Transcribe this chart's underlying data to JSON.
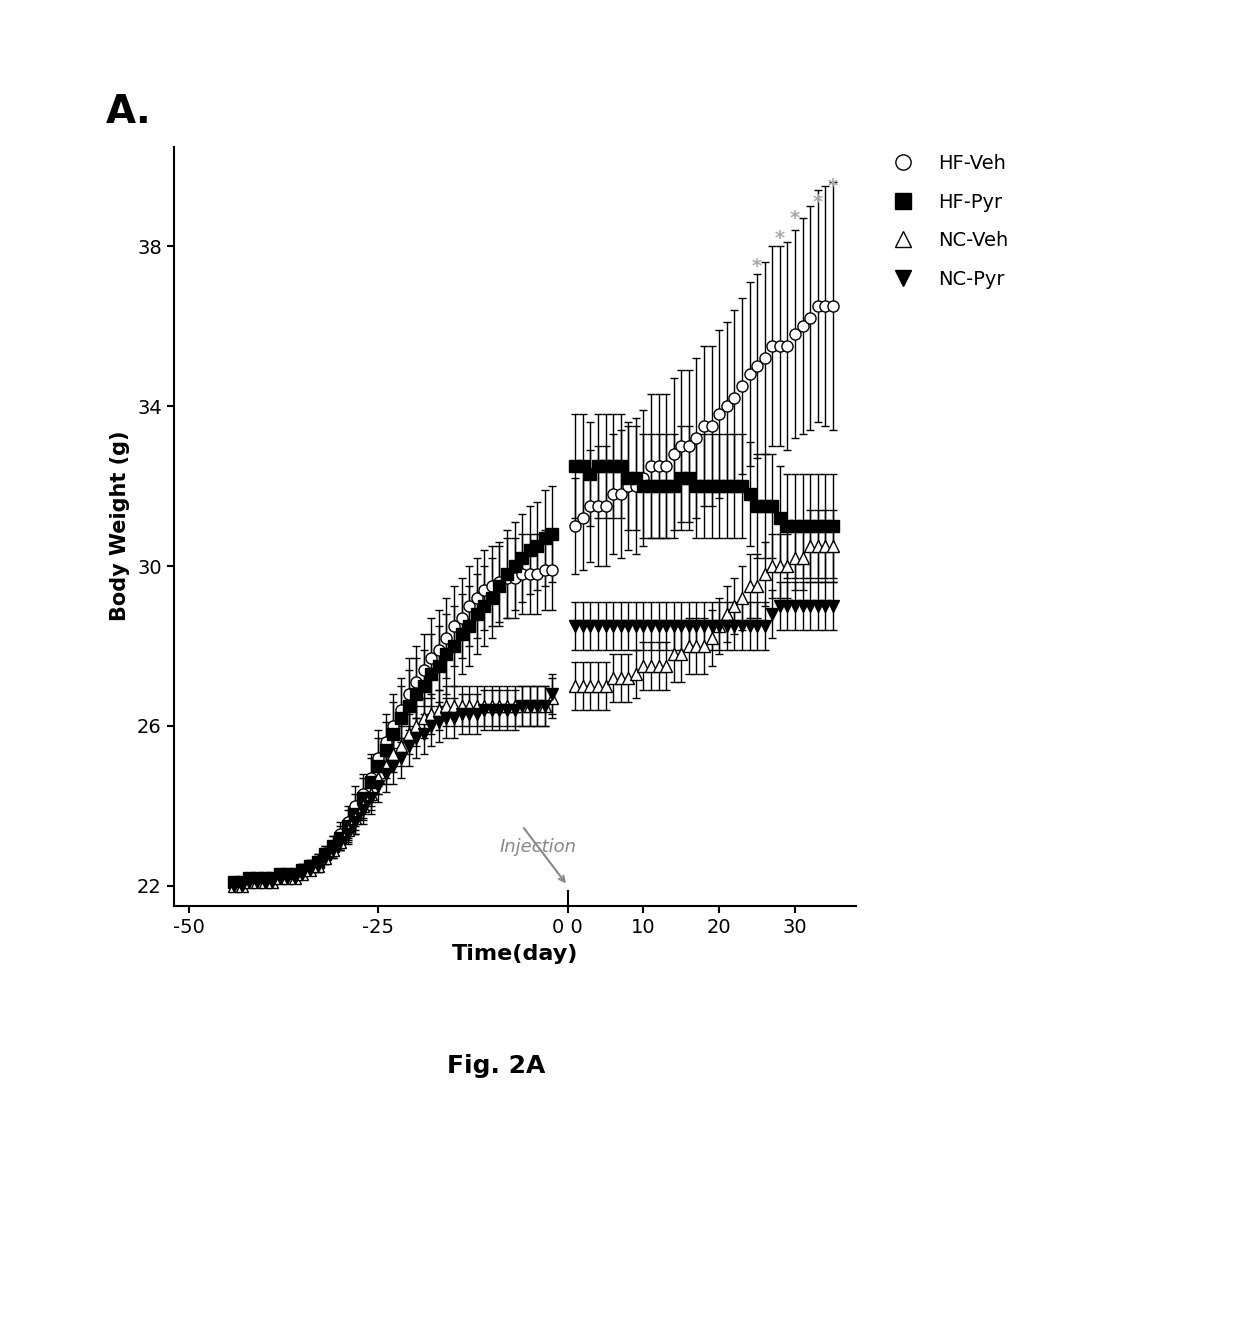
{
  "title": "A.",
  "xlabel": "Time(day)",
  "ylabel": "Body Weight (g)",
  "xlim": [
    -52,
    38
  ],
  "ylim": [
    21.5,
    40.5
  ],
  "yticks": [
    22,
    26,
    30,
    34,
    38
  ],
  "fig_label": "Fig. 2A",
  "background_color": "#ffffff",
  "HF_Veh": {
    "label": "HF-Veh",
    "marker": "o",
    "filled": false,
    "x_pre": [
      -44,
      -43,
      -42,
      -41,
      -40,
      -39,
      -38,
      -37,
      -36,
      -35,
      -34,
      -33,
      -32,
      -31,
      -30,
      -29,
      -28,
      -27,
      -26,
      -25,
      -24,
      -23,
      -22,
      -21,
      -20,
      -19,
      -18,
      -17,
      -16,
      -15,
      -14,
      -13,
      -12,
      -11,
      -10,
      -9,
      -8,
      -7,
      -6,
      -5,
      -4,
      -3,
      -2
    ],
    "y_pre": [
      22.1,
      22.1,
      22.2,
      22.2,
      22.2,
      22.2,
      22.3,
      22.3,
      22.3,
      22.4,
      22.5,
      22.6,
      22.8,
      23.0,
      23.3,
      23.6,
      24.0,
      24.3,
      24.7,
      25.2,
      25.6,
      26.0,
      26.4,
      26.8,
      27.1,
      27.4,
      27.7,
      27.9,
      28.2,
      28.5,
      28.7,
      29.0,
      29.2,
      29.4,
      29.5,
      29.6,
      29.7,
      29.7,
      29.8,
      29.8,
      29.8,
      29.9,
      29.9
    ],
    "yerr_pre": [
      0.1,
      0.1,
      0.1,
      0.1,
      0.1,
      0.1,
      0.1,
      0.1,
      0.1,
      0.15,
      0.15,
      0.2,
      0.2,
      0.25,
      0.3,
      0.4,
      0.5,
      0.5,
      0.6,
      0.7,
      0.7,
      0.8,
      0.8,
      0.9,
      0.9,
      0.9,
      1.0,
      1.0,
      1.0,
      1.0,
      1.0,
      1.0,
      1.0,
      1.0,
      1.0,
      1.0,
      1.0,
      1.0,
      1.0,
      1.0,
      1.0,
      1.0,
      1.0
    ],
    "x_post": [
      1,
      2,
      3,
      4,
      5,
      6,
      7,
      8,
      9,
      10,
      11,
      12,
      13,
      14,
      15,
      16,
      17,
      18,
      19,
      20,
      21,
      22,
      23,
      24,
      25,
      26,
      27,
      28,
      29,
      30,
      31,
      32,
      33,
      34,
      35
    ],
    "y_post": [
      31.0,
      31.2,
      31.5,
      31.5,
      31.5,
      31.8,
      31.8,
      32.0,
      32.0,
      32.2,
      32.5,
      32.5,
      32.5,
      32.8,
      33.0,
      33.0,
      33.2,
      33.5,
      33.5,
      33.8,
      34.0,
      34.2,
      34.5,
      34.8,
      35.0,
      35.2,
      35.5,
      35.5,
      35.5,
      35.8,
      36.0,
      36.2,
      36.5,
      36.5,
      36.5
    ],
    "yerr_post": [
      1.2,
      1.3,
      1.4,
      1.5,
      1.5,
      1.5,
      1.6,
      1.6,
      1.7,
      1.7,
      1.8,
      1.8,
      1.8,
      1.9,
      1.9,
      1.9,
      2.0,
      2.0,
      2.0,
      2.1,
      2.1,
      2.2,
      2.2,
      2.3,
      2.3,
      2.4,
      2.5,
      2.5,
      2.6,
      2.6,
      2.7,
      2.8,
      2.9,
      3.0,
      3.1
    ]
  },
  "HF_Pyr": {
    "label": "HF-Pyr",
    "marker": "s",
    "filled": true,
    "x_pre": [
      -44,
      -43,
      -42,
      -41,
      -40,
      -39,
      -38,
      -37,
      -36,
      -35,
      -34,
      -33,
      -32,
      -31,
      -30,
      -29,
      -28,
      -27,
      -26,
      -25,
      -24,
      -23,
      -22,
      -21,
      -20,
      -19,
      -18,
      -17,
      -16,
      -15,
      -14,
      -13,
      -12,
      -11,
      -10,
      -9,
      -8,
      -7,
      -6,
      -5,
      -4,
      -3,
      -2
    ],
    "y_pre": [
      22.1,
      22.1,
      22.2,
      22.2,
      22.2,
      22.2,
      22.3,
      22.3,
      22.3,
      22.4,
      22.5,
      22.6,
      22.8,
      23.0,
      23.2,
      23.5,
      23.8,
      24.2,
      24.6,
      25.0,
      25.4,
      25.8,
      26.2,
      26.5,
      26.8,
      27.0,
      27.3,
      27.5,
      27.8,
      28.0,
      28.3,
      28.5,
      28.8,
      29.0,
      29.2,
      29.5,
      29.8,
      30.0,
      30.2,
      30.4,
      30.5,
      30.7,
      30.8
    ],
    "yerr_pre": [
      0.1,
      0.1,
      0.1,
      0.1,
      0.1,
      0.1,
      0.1,
      0.1,
      0.1,
      0.15,
      0.15,
      0.2,
      0.2,
      0.25,
      0.3,
      0.4,
      0.5,
      0.5,
      0.6,
      0.7,
      0.7,
      0.8,
      0.8,
      0.9,
      0.9,
      0.9,
      1.0,
      1.0,
      1.0,
      1.0,
      1.0,
      1.0,
      1.0,
      1.0,
      1.0,
      1.0,
      1.1,
      1.1,
      1.1,
      1.1,
      1.1,
      1.2,
      1.2
    ],
    "x_post": [
      1,
      2,
      3,
      4,
      5,
      6,
      7,
      8,
      9,
      10,
      11,
      12,
      13,
      14,
      15,
      16,
      17,
      18,
      19,
      20,
      21,
      22,
      23,
      24,
      25,
      26,
      27,
      28,
      29,
      30,
      31,
      32,
      33,
      34,
      35
    ],
    "y_post": [
      32.5,
      32.5,
      32.3,
      32.5,
      32.5,
      32.5,
      32.5,
      32.2,
      32.2,
      32.0,
      32.0,
      32.0,
      32.0,
      32.0,
      32.2,
      32.2,
      32.0,
      32.0,
      32.0,
      32.0,
      32.0,
      32.0,
      32.0,
      31.8,
      31.5,
      31.5,
      31.5,
      31.2,
      31.0,
      31.0,
      31.0,
      31.0,
      31.0,
      31.0,
      31.0
    ],
    "yerr_post": [
      1.3,
      1.3,
      1.3,
      1.3,
      1.3,
      1.3,
      1.3,
      1.3,
      1.3,
      1.3,
      1.3,
      1.3,
      1.3,
      1.3,
      1.3,
      1.3,
      1.3,
      1.3,
      1.3,
      1.3,
      1.3,
      1.3,
      1.3,
      1.3,
      1.3,
      1.3,
      1.3,
      1.3,
      1.3,
      1.3,
      1.3,
      1.3,
      1.3,
      1.3,
      1.3
    ]
  },
  "NC_Veh": {
    "label": "NC-Veh",
    "marker": "^",
    "filled": false,
    "x_pre": [
      -44,
      -43,
      -42,
      -41,
      -40,
      -39,
      -38,
      -37,
      -36,
      -35,
      -34,
      -33,
      -32,
      -31,
      -30,
      -29,
      -28,
      -27,
      -26,
      -25,
      -24,
      -23,
      -22,
      -21,
      -20,
      -19,
      -18,
      -17,
      -16,
      -15,
      -14,
      -13,
      -12,
      -11,
      -10,
      -9,
      -8,
      -7,
      -6,
      -5,
      -4,
      -3,
      -2
    ],
    "y_pre": [
      22.0,
      22.0,
      22.1,
      22.1,
      22.1,
      22.1,
      22.2,
      22.2,
      22.2,
      22.3,
      22.4,
      22.5,
      22.7,
      22.9,
      23.1,
      23.4,
      23.7,
      24.0,
      24.3,
      24.7,
      25.0,
      25.3,
      25.5,
      25.8,
      26.0,
      26.2,
      26.3,
      26.4,
      26.5,
      26.5,
      26.5,
      26.5,
      26.5,
      26.5,
      26.5,
      26.5,
      26.5,
      26.5,
      26.5,
      26.5,
      26.5,
      26.5,
      26.7
    ],
    "yerr_pre": [
      0.1,
      0.1,
      0.1,
      0.1,
      0.1,
      0.1,
      0.1,
      0.1,
      0.1,
      0.1,
      0.1,
      0.15,
      0.15,
      0.2,
      0.2,
      0.25,
      0.3,
      0.35,
      0.4,
      0.4,
      0.45,
      0.45,
      0.5,
      0.5,
      0.5,
      0.5,
      0.5,
      0.5,
      0.5,
      0.5,
      0.5,
      0.5,
      0.5,
      0.5,
      0.5,
      0.5,
      0.5,
      0.5,
      0.5,
      0.5,
      0.5,
      0.5,
      0.5
    ],
    "x_post": [
      1,
      2,
      3,
      4,
      5,
      6,
      7,
      8,
      9,
      10,
      11,
      12,
      13,
      14,
      15,
      16,
      17,
      18,
      19,
      20,
      21,
      22,
      23,
      24,
      25,
      26,
      27,
      28,
      29,
      30,
      31,
      32,
      33,
      34,
      35
    ],
    "y_post": [
      27.0,
      27.0,
      27.0,
      27.0,
      27.0,
      27.2,
      27.2,
      27.2,
      27.3,
      27.5,
      27.5,
      27.5,
      27.5,
      27.8,
      27.8,
      28.0,
      28.0,
      28.0,
      28.2,
      28.5,
      28.8,
      29.0,
      29.2,
      29.5,
      29.5,
      29.8,
      30.0,
      30.0,
      30.0,
      30.2,
      30.2,
      30.5,
      30.5,
      30.5,
      30.5
    ],
    "yerr_post": [
      0.6,
      0.6,
      0.6,
      0.6,
      0.6,
      0.6,
      0.6,
      0.6,
      0.6,
      0.6,
      0.6,
      0.6,
      0.6,
      0.7,
      0.7,
      0.7,
      0.7,
      0.7,
      0.7,
      0.7,
      0.7,
      0.7,
      0.8,
      0.8,
      0.8,
      0.8,
      0.8,
      0.8,
      0.8,
      0.8,
      0.8,
      0.9,
      0.9,
      0.9,
      0.9
    ]
  },
  "NC_Pyr": {
    "label": "NC-Pyr",
    "marker": "v",
    "filled": true,
    "x_pre": [
      -44,
      -43,
      -42,
      -41,
      -40,
      -39,
      -38,
      -37,
      -36,
      -35,
      -34,
      -33,
      -32,
      -31,
      -30,
      -29,
      -28,
      -27,
      -26,
      -25,
      -24,
      -23,
      -22,
      -21,
      -20,
      -19,
      -18,
      -17,
      -16,
      -15,
      -14,
      -13,
      -12,
      -11,
      -10,
      -9,
      -8,
      -7,
      -6,
      -5,
      -4,
      -3,
      -2
    ],
    "y_pre": [
      22.0,
      22.0,
      22.1,
      22.1,
      22.1,
      22.1,
      22.2,
      22.2,
      22.2,
      22.3,
      22.4,
      22.5,
      22.7,
      22.9,
      23.1,
      23.3,
      23.6,
      23.9,
      24.2,
      24.5,
      24.8,
      25.0,
      25.2,
      25.5,
      25.7,
      25.8,
      26.0,
      26.1,
      26.2,
      26.2,
      26.3,
      26.3,
      26.3,
      26.4,
      26.4,
      26.4,
      26.4,
      26.4,
      26.5,
      26.5,
      26.5,
      26.5,
      26.8
    ],
    "yerr_pre": [
      0.1,
      0.1,
      0.1,
      0.1,
      0.1,
      0.1,
      0.1,
      0.1,
      0.1,
      0.1,
      0.1,
      0.15,
      0.15,
      0.2,
      0.2,
      0.25,
      0.3,
      0.35,
      0.4,
      0.4,
      0.45,
      0.45,
      0.5,
      0.5,
      0.5,
      0.5,
      0.5,
      0.5,
      0.5,
      0.5,
      0.5,
      0.5,
      0.5,
      0.5,
      0.5,
      0.5,
      0.5,
      0.5,
      0.5,
      0.5,
      0.5,
      0.5,
      0.5
    ],
    "x_post": [
      1,
      2,
      3,
      4,
      5,
      6,
      7,
      8,
      9,
      10,
      11,
      12,
      13,
      14,
      15,
      16,
      17,
      18,
      19,
      20,
      21,
      22,
      23,
      24,
      25,
      26,
      27,
      28,
      29,
      30,
      31,
      32,
      33,
      34,
      35
    ],
    "y_post": [
      28.5,
      28.5,
      28.5,
      28.5,
      28.5,
      28.5,
      28.5,
      28.5,
      28.5,
      28.5,
      28.5,
      28.5,
      28.5,
      28.5,
      28.5,
      28.5,
      28.5,
      28.5,
      28.5,
      28.5,
      28.5,
      28.5,
      28.5,
      28.5,
      28.5,
      28.5,
      28.8,
      29.0,
      29.0,
      29.0,
      29.0,
      29.0,
      29.0,
      29.0,
      29.0
    ],
    "yerr_post": [
      0.6,
      0.6,
      0.6,
      0.6,
      0.6,
      0.6,
      0.6,
      0.6,
      0.6,
      0.6,
      0.6,
      0.6,
      0.6,
      0.6,
      0.6,
      0.6,
      0.6,
      0.6,
      0.6,
      0.6,
      0.6,
      0.6,
      0.6,
      0.6,
      0.6,
      0.6,
      0.6,
      0.6,
      0.6,
      0.6,
      0.6,
      0.6,
      0.6,
      0.6,
      0.6
    ]
  },
  "sig_x": [
    25,
    28,
    30,
    33,
    35
  ],
  "sig_y": [
    37.5,
    38.2,
    38.7,
    39.1,
    39.5
  ],
  "sig_color": "#aaaaaa",
  "injection_label": "Injection",
  "injection_color": "#888888"
}
